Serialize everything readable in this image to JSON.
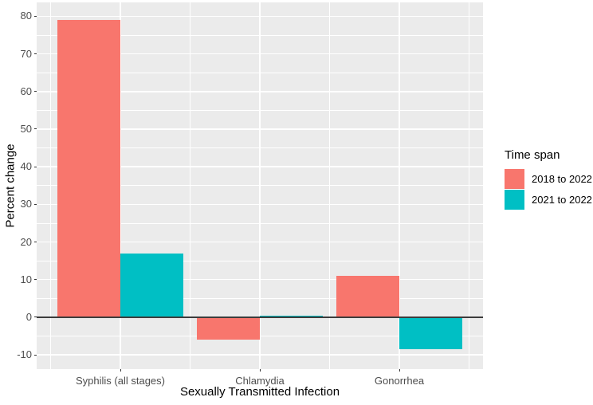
{
  "chart_data": {
    "type": "bar",
    "title": "",
    "xlabel": "Sexually Transmitted Infection",
    "ylabel": "Percent change",
    "categories": [
      "Syphilis (all stages)",
      "Chlamydia",
      "Gonorrhea"
    ],
    "series": [
      {
        "name": "2018 to 2022",
        "color": "#F8766D",
        "values": [
          79,
          -6,
          11
        ]
      },
      {
        "name": "2021 to 2022",
        "color": "#00BFC4",
        "values": [
          17,
          0.5,
          -8.5
        ]
      }
    ],
    "legend_title": "Time span",
    "legend_position": "right",
    "y_ticks": [
      -10,
      0,
      10,
      20,
      30,
      40,
      50,
      60,
      70,
      80
    ],
    "y_minor_ticks": [
      -5,
      5,
      15,
      25,
      35,
      45,
      55,
      65,
      75
    ],
    "ylim": [
      -13.8,
      83.7
    ],
    "grid": true,
    "zero_line": true,
    "bar_layout": "dodged"
  },
  "colors": {
    "panel_background": "#EBEBEB",
    "grid_major": "#FFFFFF",
    "grid_minor": "#FFFFFF",
    "axis_text": "#4D4D4D",
    "title_text": "#000000",
    "zero_line": "#3C3C3C",
    "tick_mark": "#333333",
    "series_2018_to_2022": "#F8766D",
    "series_2021_to_2022": "#00BFC4"
  }
}
